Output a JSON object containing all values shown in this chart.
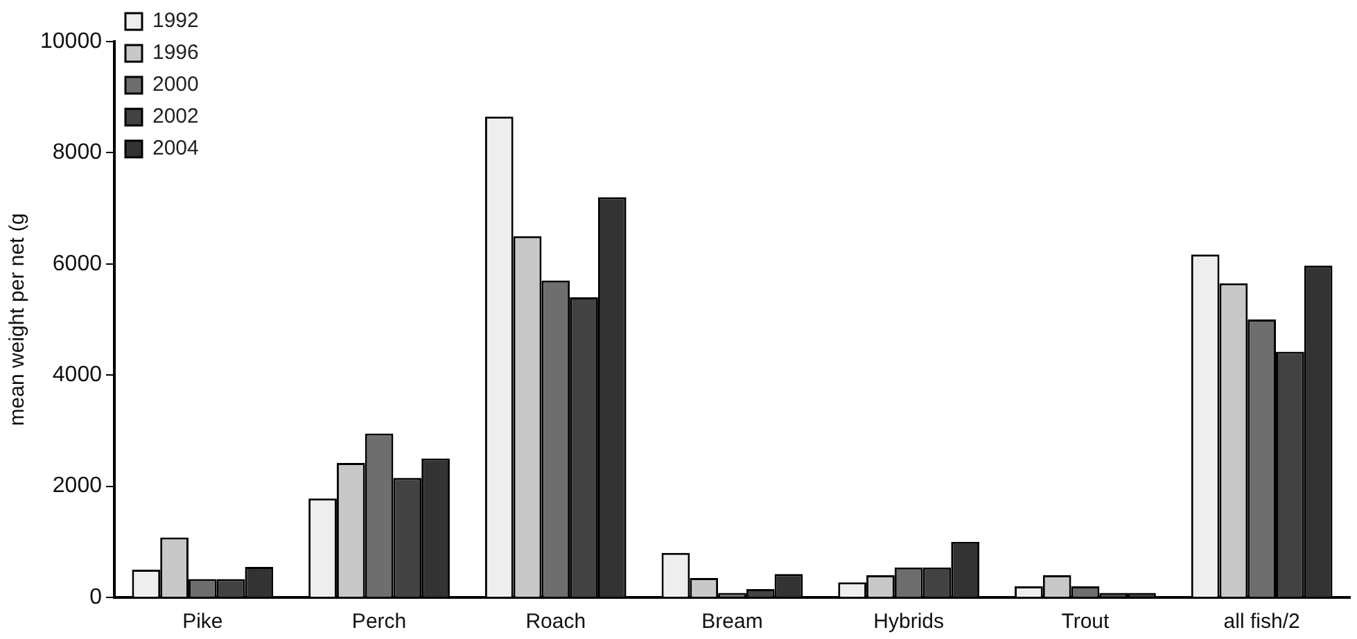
{
  "chart_data": {
    "type": "bar",
    "ylabel": "mean weight per net (g",
    "categories": [
      "Pike",
      "Perch",
      "Roach",
      "Bream",
      "Hybrids",
      "Trout",
      "all fish/2"
    ],
    "series": [
      {
        "name": "1992",
        "color": "#eeeeee",
        "values": [
          500,
          1780,
          8650,
          800,
          270,
          200,
          6170
        ]
      },
      {
        "name": "1996",
        "color": "#c8c8c8",
        "values": [
          1080,
          2420,
          6500,
          350,
          400,
          400,
          5650
        ]
      },
      {
        "name": "2000",
        "color": "#6e6e6e",
        "values": [
          330,
          2950,
          5700,
          80,
          540,
          200,
          5000
        ]
      },
      {
        "name": "2002",
        "color": "#424242",
        "values": [
          330,
          2150,
          5400,
          150,
          540,
          80,
          4420
        ]
      },
      {
        "name": "2004",
        "color": "#333333",
        "values": [
          550,
          2500,
          7200,
          420,
          1000,
          80,
          5970
        ]
      }
    ],
    "ylim": [
      0,
      10000
    ],
    "yticks": [
      0,
      2000,
      4000,
      6000,
      8000,
      10000
    ],
    "grid": false,
    "legend": "top left"
  }
}
